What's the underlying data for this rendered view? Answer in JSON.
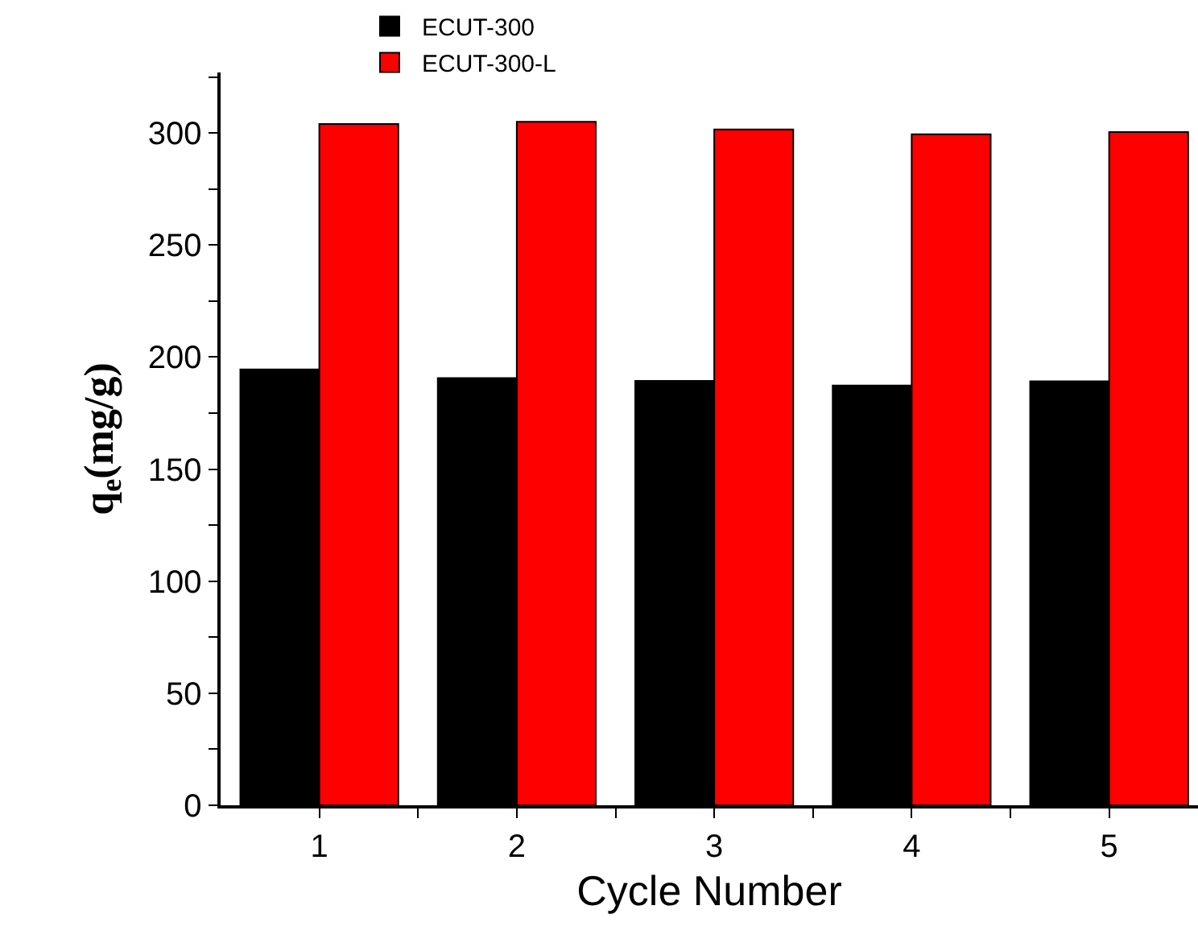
{
  "chart_data": {
    "type": "bar",
    "xlabel": "Cycle Number",
    "ylabel": "q$_{e}$(mg/g)",
    "x": [
      1,
      2,
      3,
      4,
      5
    ],
    "series": [
      {
        "name": "ECUT-300",
        "color": "#000000",
        "values": [
          194.5,
          190.6,
          189.4,
          187.3,
          189.2
        ]
      },
      {
        "name": "ECUT-300-L",
        "color": "#ff0000",
        "values": [
          304,
          305,
          301.6,
          299.4,
          300.4
        ]
      }
    ],
    "xlim": [
      0.5,
      5.45
    ],
    "xticks": [
      1,
      {
        "value": 1.5,
        "label": null
      },
      2,
      {
        "value": 2.5,
        "label": null
      },
      3,
      {
        "value": 3.5,
        "label": null
      },
      4,
      {
        "value": 4.5,
        "label": null
      },
      5
    ],
    "ylim": [
      0,
      327
    ],
    "yticks": [
      0,
      {
        "value": 25,
        "label": null
      },
      50,
      {
        "value": 75,
        "label": null
      },
      100,
      {
        "value": 125,
        "label": null
      },
      150,
      {
        "value": 175,
        "label": null
      },
      200,
      {
        "value": 225,
        "label": null
      },
      250,
      {
        "value": 275,
        "label": null
      },
      300,
      {
        "value": 325,
        "label": null
      }
    ],
    "legend": "top"
  }
}
